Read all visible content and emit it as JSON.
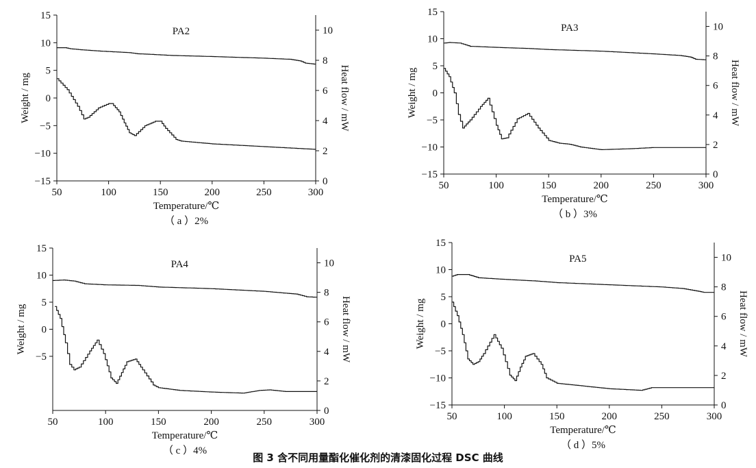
{
  "figure": {
    "caption": "图 3   含不同用量酯化催化剂的清漆固化过程 DSC 曲线"
  },
  "chart_data": [
    {
      "type": "line",
      "title": "PA2",
      "sublabel": "（ a ）2%",
      "xlabel": "Temperature/℃",
      "ylabel_left": "Weight / mg",
      "ylabel_right": "Heat flow / mW",
      "xlim": [
        50,
        300
      ],
      "ylim_left": [
        -15,
        15
      ],
      "ylim_right": [
        0,
        11
      ],
      "x_ticks": [
        50,
        100,
        150,
        200,
        250,
        300
      ],
      "y_ticks_left": [
        -15,
        -10,
        -5,
        0,
        5,
        10,
        15
      ],
      "y_ticks_right": [
        0,
        2,
        4,
        6,
        8,
        10
      ],
      "series": [
        {
          "axis": "left",
          "x": [
            50,
            58,
            63,
            75,
            90,
            100,
            110,
            120,
            128,
            140,
            150,
            160,
            200,
            250,
            275,
            285,
            290,
            300
          ],
          "y": [
            9.1,
            9.1,
            8.9,
            8.7,
            8.5,
            8.4,
            8.3,
            8.2,
            8.0,
            7.9,
            7.8,
            7.7,
            7.5,
            7.2,
            7.0,
            6.7,
            6.3,
            6.1
          ]
        },
        {
          "axis": "left",
          "x": [
            50,
            60,
            70,
            76,
            80,
            90,
            100,
            103,
            110,
            115,
            120,
            125,
            135,
            145,
            150,
            155,
            165,
            170,
            200,
            250,
            290,
            300
          ],
          "y": [
            3.5,
            1.5,
            -1.5,
            -3.8,
            -3.5,
            -1.8,
            -1.0,
            -1.0,
            -2.5,
            -4.5,
            -6.3,
            -6.8,
            -5.0,
            -4.2,
            -4.2,
            -5.5,
            -7.5,
            -7.8,
            -8.3,
            -8.8,
            -9.2,
            -9.3
          ]
        }
      ]
    },
    {
      "type": "line",
      "title": "PA3",
      "sublabel": "（ b ）3%",
      "xlabel": "Temperature/℃",
      "ylabel_left": "Weight / mg",
      "ylabel_right": "Heat flow / mW",
      "xlim": [
        50,
        300
      ],
      "ylim_left": [
        -15,
        15
      ],
      "ylim_right": [
        0,
        11
      ],
      "x_ticks": [
        50,
        100,
        150,
        200,
        250,
        300
      ],
      "y_ticks_left": [
        -15,
        -10,
        -5,
        0,
        5,
        10,
        15
      ],
      "y_ticks_right": [
        0,
        2,
        4,
        6,
        8,
        10
      ],
      "series": [
        {
          "axis": "left",
          "x": [
            50,
            55,
            65,
            75,
            100,
            130,
            150,
            200,
            250,
            275,
            285,
            290,
            300
          ],
          "y": [
            9.2,
            9.3,
            9.2,
            8.6,
            8.4,
            8.2,
            8.0,
            7.7,
            7.2,
            6.9,
            6.6,
            6.2,
            6.1
          ]
        },
        {
          "axis": "left",
          "x": [
            50,
            55,
            60,
            64,
            68,
            75,
            85,
            92,
            100,
            105,
            110,
            120,
            130,
            140,
            150,
            160,
            170,
            180,
            200,
            230,
            250,
            300
          ],
          "y": [
            4.5,
            3.0,
            0.0,
            -4.0,
            -6.5,
            -5.0,
            -2.5,
            -1.0,
            -6.0,
            -8.5,
            -8.3,
            -4.8,
            -3.8,
            -6.5,
            -8.8,
            -9.3,
            -9.5,
            -10.0,
            -10.5,
            -10.3,
            -10.1,
            -10.1
          ]
        }
      ]
    },
    {
      "type": "line",
      "title": "PA4",
      "sublabel": "（ c ）4%",
      "xlabel": "Temperature/℃",
      "ylabel_left": "Weight / mg",
      "ylabel_right": "Heat flow / mW",
      "xlim": [
        50,
        300
      ],
      "ylim_left": [
        -15,
        15
      ],
      "ylim_right": [
        0,
        11
      ],
      "x_ticks": [
        50,
        100,
        150,
        200,
        250,
        300
      ],
      "y_ticks_left": [
        -5,
        0,
        5,
        10,
        15
      ],
      "y_ticks_right": [
        0,
        2,
        4,
        6,
        8,
        10
      ],
      "series": [
        {
          "axis": "left",
          "x": [
            50,
            60,
            70,
            80,
            100,
            130,
            150,
            200,
            250,
            280,
            290,
            300
          ],
          "y": [
            9.0,
            9.1,
            8.9,
            8.4,
            8.2,
            8.1,
            7.8,
            7.5,
            7.0,
            6.5,
            6.0,
            5.9
          ]
        },
        {
          "axis": "left",
          "x": [
            52,
            57,
            62,
            66,
            70,
            75,
            85,
            92,
            98,
            105,
            110,
            115,
            120,
            128,
            135,
            145,
            150,
            170,
            200,
            230,
            245,
            255,
            270,
            300
          ],
          "y": [
            4.2,
            2.0,
            -2.5,
            -6.5,
            -7.5,
            -7.0,
            -4.0,
            -2.0,
            -4.5,
            -9.0,
            -10.0,
            -8.0,
            -6.0,
            -5.5,
            -7.5,
            -10.3,
            -10.8,
            -11.3,
            -11.6,
            -11.8,
            -11.3,
            -11.2,
            -11.5,
            -11.5
          ]
        }
      ]
    },
    {
      "type": "line",
      "title": "PA5",
      "sublabel": "（ d ）5%",
      "xlabel": "Temperature/℃",
      "ylabel_left": "Weight / mg",
      "ylabel_right": "Heat flow / mW",
      "xlim": [
        50,
        300
      ],
      "ylim_left": [
        -15,
        15
      ],
      "ylim_right": [
        0,
        11
      ],
      "x_ticks": [
        50,
        100,
        150,
        200,
        250,
        300
      ],
      "y_ticks_left": [
        -15,
        -10,
        -5,
        0,
        5,
        10,
        15
      ],
      "y_ticks_right": [
        0,
        2,
        4,
        6,
        8,
        10
      ],
      "series": [
        {
          "axis": "left",
          "x": [
            50,
            55,
            65,
            75,
            100,
            130,
            150,
            200,
            250,
            270,
            285,
            290,
            300
          ],
          "y": [
            8.8,
            9.1,
            9.1,
            8.5,
            8.2,
            7.9,
            7.6,
            7.2,
            6.8,
            6.5,
            6.0,
            5.8,
            5.8
          ]
        },
        {
          "axis": "left",
          "x": [
            50,
            55,
            60,
            65,
            70,
            75,
            80,
            90,
            97,
            105,
            110,
            115,
            120,
            127,
            135,
            140,
            150,
            200,
            230,
            240,
            300
          ],
          "y": [
            4.0,
            1.5,
            -2.0,
            -6.5,
            -7.5,
            -7.0,
            -5.5,
            -2.0,
            -4.5,
            -9.5,
            -10.5,
            -8.0,
            -6.0,
            -5.5,
            -7.5,
            -10.0,
            -11.0,
            -12.0,
            -12.3,
            -11.8,
            -11.8
          ]
        }
      ]
    }
  ]
}
